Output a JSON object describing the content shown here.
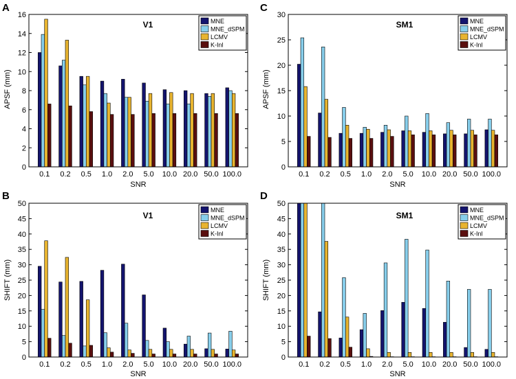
{
  "series_colors": {
    "MNE": "#14146e",
    "MNE_dSPM": "#87ceeb",
    "LCMV": "#e8b430",
    "K-Inl": "#5a0f0f"
  },
  "chart_data": [
    {
      "panel_letter": "A",
      "type": "bar",
      "title": "V1",
      "xlabel": "SNR",
      "ylabel": "APSF (mm)",
      "ylim": [
        0,
        16
      ],
      "yticks": [
        0,
        2,
        4,
        6,
        8,
        10,
        12,
        14,
        16
      ],
      "categories": [
        "0.1",
        "0.2",
        "0.5",
        "1.0",
        "2.0",
        "5.0",
        "10.0",
        "20.0",
        "50.0",
        "100.0"
      ],
      "legend": [
        "MNE",
        "MNE_dSPM",
        "LCMV",
        "K-Inl"
      ],
      "series": [
        {
          "name": "MNE",
          "values": [
            12.0,
            10.6,
            9.5,
            9.0,
            9.2,
            8.8,
            8.1,
            8.0,
            7.7,
            8.3
          ]
        },
        {
          "name": "MNE_dSPM",
          "values": [
            13.9,
            11.2,
            8.6,
            7.7,
            7.3,
            6.9,
            6.6,
            6.6,
            7.4,
            8.0
          ]
        },
        {
          "name": "LCMV",
          "values": [
            15.5,
            13.3,
            9.5,
            6.7,
            7.3,
            7.7,
            7.8,
            7.7,
            7.7,
            7.7
          ]
        },
        {
          "name": "K-Inl",
          "values": [
            6.6,
            6.4,
            5.8,
            5.5,
            5.5,
            5.6,
            5.6,
            5.6,
            5.6,
            5.6
          ]
        }
      ]
    },
    {
      "panel_letter": "C",
      "type": "bar",
      "title": "SM1",
      "xlabel": "SNR",
      "ylabel": "APSF (mm)",
      "ylim": [
        0,
        30
      ],
      "yticks": [
        0,
        5,
        10,
        15,
        20,
        25,
        30
      ],
      "categories": [
        "0.1",
        "0.2",
        "0.5",
        "1.0",
        "2.0",
        "5.0",
        "10.0",
        "20.0",
        "50.0",
        "100.0"
      ],
      "legend": [
        "MNE",
        "MNE_dSPM",
        "LCMV",
        "K-Inl"
      ],
      "series": [
        {
          "name": "MNE",
          "values": [
            20.2,
            10.6,
            6.6,
            6.6,
            6.8,
            7.1,
            6.8,
            6.5,
            6.5,
            7.3
          ]
        },
        {
          "name": "MNE_dSPM",
          "values": [
            25.4,
            23.6,
            11.7,
            7.8,
            8.2,
            10.0,
            10.5,
            8.7,
            9.4,
            9.4
          ]
        },
        {
          "name": "LCMV",
          "values": [
            15.8,
            13.3,
            8.2,
            7.4,
            7.3,
            7.1,
            7.1,
            7.2,
            7.2,
            7.2
          ]
        },
        {
          "name": "K-Inl",
          "values": [
            6.0,
            5.8,
            5.6,
            5.6,
            6.0,
            6.3,
            6.3,
            6.3,
            6.3,
            6.3
          ]
        }
      ]
    },
    {
      "panel_letter": "B",
      "type": "bar",
      "title": "V1",
      "xlabel": "SNR",
      "ylabel": "SHIFT (mm)",
      "ylim": [
        0,
        50
      ],
      "yticks": [
        0,
        5,
        10,
        15,
        20,
        25,
        30,
        35,
        40,
        45,
        50
      ],
      "categories": [
        "0.1",
        "0.2",
        "0.5",
        "1.0",
        "2.0",
        "5.0",
        "10.0",
        "20.0",
        "50.0",
        "100.0"
      ],
      "legend": [
        "MNE",
        "MNE_dSPM",
        "LCMV",
        "K-Inl"
      ],
      "series": [
        {
          "name": "MNE",
          "values": [
            29.5,
            24.4,
            24.6,
            28.2,
            30.2,
            20.2,
            9.4,
            4.2,
            2.7,
            2.6
          ]
        },
        {
          "name": "MNE_dSPM",
          "values": [
            15.5,
            7.0,
            3.6,
            7.9,
            11.0,
            5.4,
            5.0,
            6.8,
            7.8,
            8.4
          ]
        },
        {
          "name": "LCMV",
          "values": [
            37.8,
            32.4,
            18.6,
            3.0,
            2.3,
            2.5,
            2.5,
            2.5,
            2.5,
            2.3
          ]
        },
        {
          "name": "K-Inl",
          "values": [
            6.1,
            4.5,
            3.8,
            1.6,
            1.2,
            1.0,
            1.0,
            1.0,
            1.0,
            1.0
          ]
        }
      ]
    },
    {
      "panel_letter": "D",
      "type": "bar",
      "title": "SM1",
      "xlabel": "SNR",
      "ylabel": "SHIFT (mm)",
      "ylim": [
        0,
        50
      ],
      "yticks": [
        0,
        5,
        10,
        15,
        20,
        25,
        30,
        35,
        40,
        45,
        50
      ],
      "categories": [
        "0.1",
        "0.2",
        "0.5",
        "1.0",
        "2.0",
        "5.0",
        "10.0",
        "20.0",
        "50.0",
        "100.0"
      ],
      "legend": [
        "MNE",
        "MNE_dSPM",
        "LCMV",
        "K-Inl"
      ],
      "series": [
        {
          "name": "MNE",
          "values": [
            50,
            14.7,
            6.2,
            8.9,
            15.1,
            17.8,
            15.8,
            11.3,
            3.1,
            2.5
          ]
        },
        {
          "name": "MNE_dSPM",
          "values": [
            50,
            50,
            25.8,
            14.2,
            30.6,
            38.3,
            34.8,
            24.7,
            22.0,
            22.0
          ]
        },
        {
          "name": "LCMV",
          "values": [
            50,
            37.6,
            13.0,
            2.7,
            1.5,
            1.5,
            1.5,
            1.5,
            1.5,
            1.5
          ]
        },
        {
          "name": "K-Inl",
          "values": [
            6.8,
            6.0,
            3.2,
            0.2,
            0.1,
            0.1,
            0.1,
            0.1,
            0.1,
            0.1
          ]
        }
      ]
    }
  ]
}
